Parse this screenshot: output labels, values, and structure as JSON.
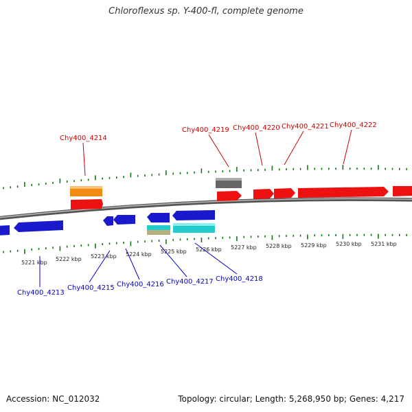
{
  "title": "Chloroflexus sp. Y-400-fl, complete genome",
  "footer": {
    "accession": "Accession: NC_012032",
    "summary": "Topology: circular; Length: 5,268,950 bp; Genes: 4,217"
  },
  "colors": {
    "forward_label": "#cc0000",
    "reverse_label": "#0000cc",
    "tick": "#117711",
    "backbone": "#808080",
    "forward_gene": "#ee1111",
    "reverse_gene": "#1a1acc",
    "orange_gene": "#f08a10",
    "gray_gene": "#666666",
    "cyan_gene": "#22cccc",
    "khaki_gene": "#b8b07a"
  },
  "scale_labels": [
    "5221 kbp",
    "5222 kbp",
    "5223 kbp",
    "5224 kbp",
    "5225 kbp",
    "5226 kbp",
    "5227 kbp",
    "5228 kbp",
    "5229 kbp",
    "5230 kbp",
    "5231 kbp"
  ],
  "forward_labels": [
    "Chy400_4214",
    "Chy400_4219",
    "Chy400_4220",
    "Chy400_4221",
    "Chy400_4222"
  ],
  "reverse_labels": [
    "Chy400_4213",
    "Chy400_4215",
    "Chy400_4216",
    "Chy400_4217",
    "Chy400_4218"
  ]
}
